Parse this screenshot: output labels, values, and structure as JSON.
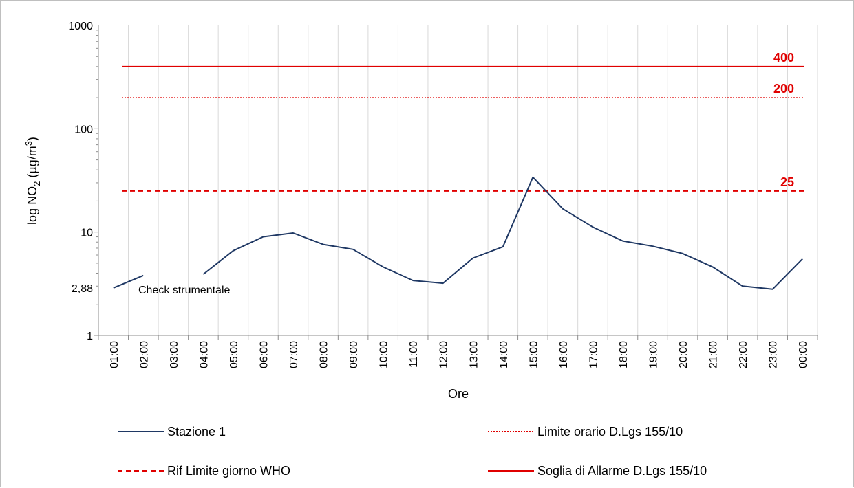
{
  "chart_data": {
    "type": "line",
    "title": "",
    "xlabel": "Ore",
    "ylabel": "log NO2 (µg/m3)",
    "ylabel_parts": {
      "pre": "log NO",
      "sub": "2",
      "mid": " (µg/m",
      "sup": "3",
      "post": ")"
    },
    "y_scale": "log",
    "ylim": [
      1,
      1000
    ],
    "y_ticks": [
      {
        "value": 1,
        "label": "1"
      },
      {
        "value": 2.88,
        "label": "2,88"
      },
      {
        "value": 10,
        "label": "10"
      },
      {
        "value": 100,
        "label": "100"
      },
      {
        "value": 1000,
        "label": "1000"
      }
    ],
    "categories": [
      "01:00",
      "02:00",
      "03:00",
      "04:00",
      "05:00",
      "06:00",
      "07:00",
      "08:00",
      "09:00",
      "10:00",
      "11:00",
      "12:00",
      "13:00",
      "14:00",
      "15:00",
      "16:00",
      "17:00",
      "18:00",
      "19:00",
      "20:00",
      "21:00",
      "22:00",
      "23:00",
      "00:00"
    ],
    "grid": "vertical",
    "series": [
      {
        "name": "Stazione 1",
        "color": "#1f3864",
        "style": "solid",
        "values": [
          2.88,
          3.8,
          null,
          3.9,
          6.6,
          9.0,
          9.8,
          7.6,
          6.8,
          4.6,
          3.4,
          3.2,
          5.6,
          7.2,
          34,
          16.8,
          11.2,
          8.2,
          7.3,
          6.2,
          4.6,
          3.0,
          2.8,
          5.5
        ]
      },
      {
        "name": "Limite orario D.Lgs 155/10",
        "color": "#e00000",
        "style": "dotted",
        "constant": 200
      },
      {
        "name": "Rif Limite giorno WHO",
        "color": "#e00000",
        "style": "dashed",
        "constant": 25
      },
      {
        "name": "Soglia di Allarme D.Lgs 155/10",
        "color": "#e00000",
        "style": "solid",
        "constant": 400
      }
    ],
    "reference_labels": [
      "400",
      "200",
      "25"
    ],
    "annotations": [
      {
        "text": "Check strumentale"
      }
    ],
    "legend_position": "bottom"
  }
}
